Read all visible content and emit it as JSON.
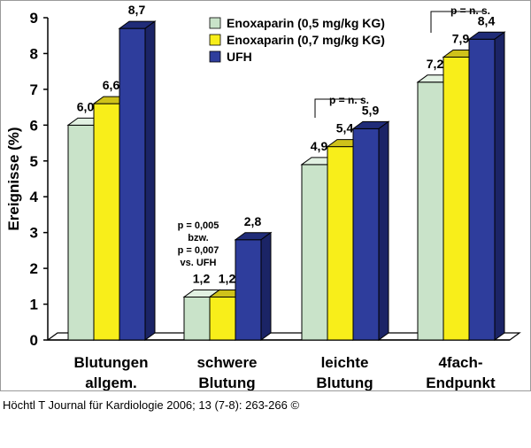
{
  "chart_data": {
    "type": "bar",
    "style": "3d-grouped",
    "ylabel": "Ereignisse (%)",
    "ylim": [
      0,
      9
    ],
    "yticks": [
      "0",
      "1",
      "2",
      "3",
      "4",
      "5",
      "6",
      "7",
      "8",
      "9"
    ],
    "categories": [
      {
        "line1": "Blutungen",
        "line2": "allgem."
      },
      {
        "line1": "schwere",
        "line2": "Blutung"
      },
      {
        "line1": "leichte",
        "line2": "Blutung"
      },
      {
        "line1": "4fach-",
        "line2": "Endpunkt"
      }
    ],
    "series": [
      {
        "name": "Enoxaparin (0,5 mg/kg KG)",
        "color": "#c9e3c9",
        "side": "#9ec49e",
        "top": "#e2f1e2",
        "values": [
          6.0,
          1.2,
          4.9,
          7.2
        ],
        "labels": [
          "6,0",
          "1,2",
          "4,9",
          "7,2"
        ]
      },
      {
        "name": "Enoxaparin (0,7 mg/kg KG)",
        "color": "#f8ee1a",
        "side": "#c9ba10",
        "top": "#cfc21a",
        "values": [
          6.6,
          1.2,
          5.4,
          7.9
        ],
        "labels": [
          "6,6",
          "1,2",
          "5,4",
          "7,9"
        ]
      },
      {
        "name": "UFH",
        "color": "#2e3d9c",
        "side": "#1b2466",
        "top": "#202c78",
        "values": [
          8.7,
          2.8,
          5.9,
          8.4
        ],
        "labels": [
          "8,7",
          "2,8",
          "5,9",
          "8,4"
        ]
      }
    ],
    "annotations": [
      {
        "text": "p = n. s."
      },
      {
        "text": "p = n. s."
      },
      {
        "lines": [
          "p = 0,005",
          "bzw.",
          "p = 0,007",
          "vs. UFH"
        ]
      }
    ]
  },
  "credit": "Höchtl T Journal für Kardiologie 2006; 13 (7-8): 263-266 ©"
}
